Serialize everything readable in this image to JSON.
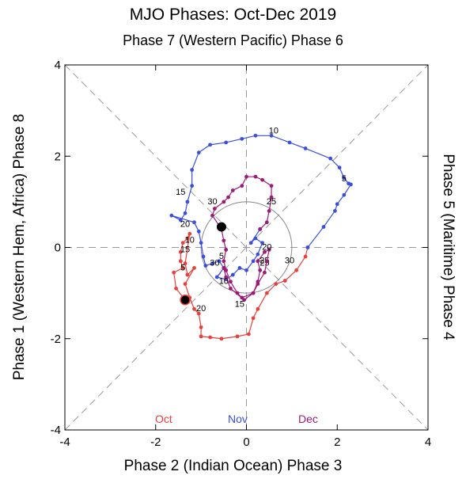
{
  "chart_data": {
    "type": "line",
    "title": "MJO Phases: Oct-Dec 2019",
    "subtitle": "Phase 7 (Western Pacific) Phase 6",
    "xlabel": "Phase 2 (Indian Ocean) Phase 3",
    "ylabel_left": "Phase 1 (Western Hem, Africa) Phase 8",
    "ylabel_right": "Phase 5 (Maritime) Phase 4",
    "xlim": [
      -4,
      4
    ],
    "ylim": [
      -4,
      4
    ],
    "x_ticks": [
      -4,
      -2,
      0,
      2,
      4
    ],
    "y_ticks": [
      -4,
      -2,
      0,
      2,
      4
    ],
    "x_tick_labels": [
      "-4",
      "-2",
      "0",
      "2",
      "4"
    ],
    "y_tick_labels": [
      "-4",
      "-2",
      "0",
      "2",
      "4"
    ],
    "unit_circle_radius": 1,
    "series": [
      {
        "name": "Oct",
        "color": "#e8403a",
        "points": [
          [
            -1.35,
            -1.15
          ],
          [
            -1.55,
            -0.9
          ],
          [
            -1.6,
            -0.55
          ],
          [
            -1.4,
            -0.45
          ],
          [
            -1.45,
            -0.3
          ],
          [
            -1.45,
            -0.1
          ],
          [
            -1.4,
            0.1
          ],
          [
            -1.3,
            0.2
          ],
          [
            -1.25,
            0.3
          ],
          [
            -1.35,
            -0.35
          ],
          [
            -1.3,
            -0.6
          ],
          [
            -1.15,
            -0.45
          ],
          [
            -1.35,
            -0.8
          ],
          [
            -1.25,
            -1.1
          ],
          [
            -1.15,
            -1.35
          ],
          [
            -1.05,
            -1.45
          ],
          [
            -1.0,
            -1.75
          ],
          [
            -1.0,
            -1.95
          ],
          [
            -0.8,
            -1.97
          ],
          [
            -0.55,
            -2.0
          ],
          [
            -0.2,
            -1.95
          ],
          [
            0.05,
            -1.9
          ],
          [
            0.15,
            -1.55
          ],
          [
            0.25,
            -1.35
          ],
          [
            0.45,
            -1.0
          ],
          [
            0.65,
            -0.8
          ],
          [
            0.85,
            -0.73
          ],
          [
            1.1,
            -0.5
          ],
          [
            1.3,
            -0.2
          ],
          [
            1.35,
            0.0
          ]
        ],
        "labels": [
          {
            "text": "5",
            "x": -1.4,
            "y": -0.5
          },
          {
            "text": "10",
            "x": -1.25,
            "y": 0.1
          },
          {
            "text": "15",
            "x": -1.35,
            "y": -0.1
          },
          {
            "text": "20",
            "x": -1.0,
            "y": -1.4
          },
          {
            "text": "25",
            "x": 0.4,
            "y": -0.35
          },
          {
            "text": "30",
            "x": 0.95,
            "y": -0.35
          }
        ],
        "end_marker": [
          -1.35,
          -1.15
        ]
      },
      {
        "name": "Nov",
        "color": "#3a4fe0",
        "points": [
          [
            1.35,
            0.0
          ],
          [
            1.7,
            0.45
          ],
          [
            1.95,
            0.8
          ],
          [
            2.0,
            0.95
          ],
          [
            2.15,
            1.15
          ],
          [
            2.3,
            1.38
          ],
          [
            2.25,
            1.4
          ],
          [
            2.15,
            1.52
          ],
          [
            2.05,
            1.75
          ],
          [
            1.85,
            1.95
          ],
          [
            1.3,
            2.17
          ],
          [
            0.95,
            2.3
          ],
          [
            0.55,
            2.45
          ],
          [
            0.2,
            2.45
          ],
          [
            -0.1,
            2.38
          ],
          [
            -0.45,
            2.3
          ],
          [
            -0.8,
            2.25
          ],
          [
            -1.05,
            2.08
          ],
          [
            -1.2,
            1.7
          ],
          [
            -1.2,
            1.35
          ],
          [
            -1.3,
            1.0
          ],
          [
            -1.35,
            0.75
          ],
          [
            -1.45,
            0.6
          ],
          [
            -1.65,
            0.7
          ],
          [
            -1.15,
            0.55
          ],
          [
            -1.05,
            0.35
          ],
          [
            -1.0,
            0.1
          ],
          [
            -0.95,
            -0.2
          ],
          [
            -0.9,
            -0.4
          ],
          [
            -0.75,
            -0.35
          ],
          [
            -0.6,
            -0.3
          ],
          [
            -0.5,
            -0.45
          ],
          [
            -0.65,
            -0.65
          ],
          [
            -0.45,
            -0.7
          ],
          [
            -0.3,
            -0.6
          ],
          [
            -0.15,
            -0.45
          ],
          [
            0.0,
            -0.5
          ],
          [
            0.15,
            -0.3
          ],
          [
            0.25,
            -0.15
          ],
          [
            0.35,
            0.1
          ],
          [
            0.2,
            0.2
          ],
          [
            0.1,
            0.1
          ],
          [
            0.3,
            0.4
          ]
        ],
        "labels": [
          {
            "text": "5",
            "x": 2.15,
            "y": 1.45
          },
          {
            "text": "10",
            "x": 0.6,
            "y": 2.5
          },
          {
            "text": "15",
            "x": -1.45,
            "y": 1.15
          },
          {
            "text": "20",
            "x": -1.35,
            "y": 0.45
          },
          {
            "text": "25",
            "x": 0.4,
            "y": -0.4
          },
          {
            "text": "30",
            "x": -0.7,
            "y": -0.4
          }
        ],
        "end_marker": [
          -0.55,
          0.45
        ]
      },
      {
        "name": "Dec",
        "color": "#9c1a78",
        "points": [
          [
            0.3,
            0.4
          ],
          [
            0.45,
            0.55
          ],
          [
            0.5,
            0.8
          ],
          [
            0.55,
            1.1
          ],
          [
            0.55,
            1.35
          ],
          [
            0.35,
            1.48
          ],
          [
            0.2,
            1.55
          ],
          [
            0.0,
            1.55
          ],
          [
            -0.1,
            1.35
          ],
          [
            -0.3,
            1.25
          ],
          [
            -0.4,
            1.1
          ],
          [
            -0.5,
            1.0
          ],
          [
            -0.7,
            0.85
          ],
          [
            -0.75,
            0.7
          ],
          [
            -0.55,
            0.4
          ],
          [
            -0.5,
            0.15
          ],
          [
            -0.45,
            -0.05
          ],
          [
            -0.5,
            -0.3
          ],
          [
            -0.45,
            -0.5
          ],
          [
            -0.35,
            -0.75
          ],
          [
            -0.2,
            -1.0
          ],
          [
            -0.1,
            -1.1
          ],
          [
            0.15,
            -1.0
          ],
          [
            0.25,
            -0.75
          ],
          [
            0.3,
            -0.5
          ],
          [
            0.25,
            -0.3
          ],
          [
            0.4,
            -0.1
          ],
          [
            0.5,
            -0.05
          ],
          [
            0.45,
            -0.3
          ],
          [
            0.4,
            -0.55
          ],
          [
            0.25,
            -0.8
          ],
          [
            0.15,
            -1.0
          ],
          [
            -0.05,
            -1.15
          ],
          [
            -0.35,
            -0.9
          ],
          [
            -0.45,
            -0.65
          ],
          [
            -0.5,
            -0.45
          ]
        ],
        "labels": [
          {
            "text": "30",
            "x": -0.75,
            "y": 0.95
          },
          {
            "text": "25",
            "x": 0.55,
            "y": 0.95
          },
          {
            "text": "20",
            "x": 0.45,
            "y": -0.05
          },
          {
            "text": "15",
            "x": -0.15,
            "y": -1.3
          },
          {
            "text": "10",
            "x": -0.5,
            "y": -0.8
          },
          {
            "text": "5",
            "x": -0.55,
            "y": -0.25
          }
        ],
        "end_marker": [
          -0.55,
          0.45
        ]
      }
    ]
  }
}
